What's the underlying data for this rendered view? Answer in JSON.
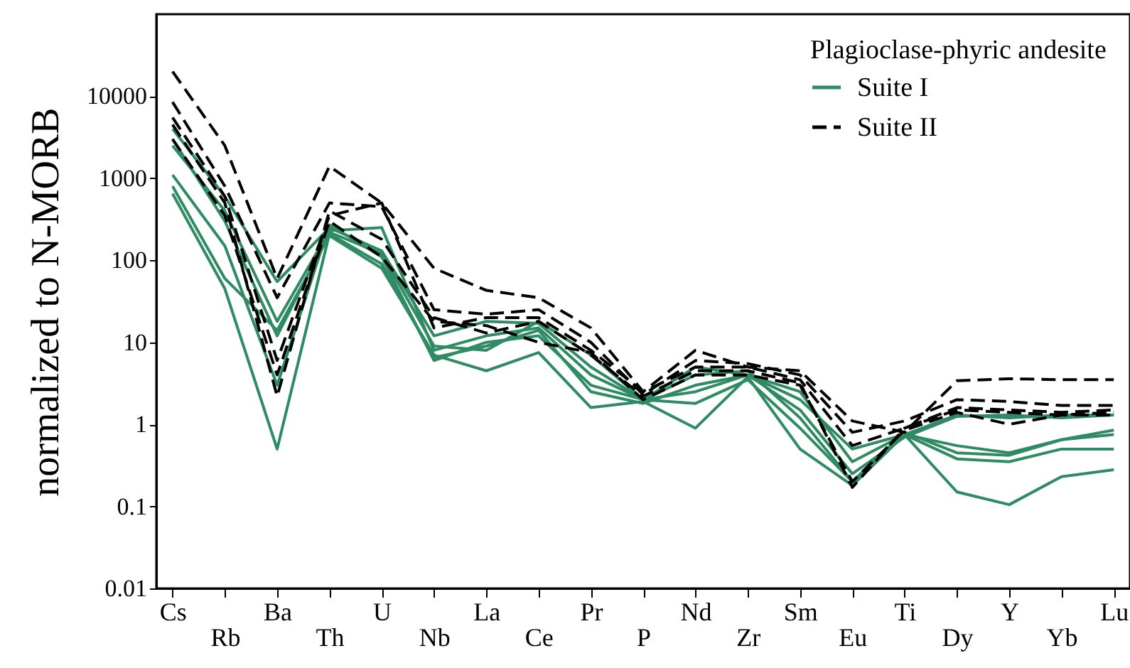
{
  "chart_data": {
    "type": "line",
    "ylabel": "normalized to N-MORB",
    "legend_title": "Plagioclase-phyric andesite",
    "legend": "top right",
    "log": true,
    "categories": [
      "Cs",
      "Rb",
      "Ba",
      "Th",
      "U",
      "Nb",
      "La",
      "Ce",
      "Pr",
      "P",
      "Nd",
      "Zr",
      "Sm",
      "Eu",
      "Ti",
      "Dy",
      "Y",
      "Yb",
      "Lu"
    ],
    "ylim": [
      0.01,
      100000
    ],
    "yticks": [
      0.01,
      0.1,
      1,
      10,
      100,
      1000,
      10000
    ],
    "grid": false,
    "marker": "none",
    "series": [
      {
        "name": "Suite I",
        "color": "#2e8b64",
        "line_style": "solid",
        "values": [
          4000,
          600,
          55,
          250,
          130,
          12,
          18,
          17,
          5,
          2,
          5,
          4,
          2,
          0.5,
          0.75,
          1.3,
          1.2,
          1.3,
          1.3
        ]
      },
      {
        "color": "#2e8b64",
        "line_style": "solid",
        "values": [
          2500,
          400,
          18,
          230,
          250,
          8,
          12,
          15,
          4,
          2,
          2.5,
          4,
          2.5,
          0.35,
          0.75,
          0.55,
          0.45,
          0.65,
          0.85
        ]
      },
      {
        "color": "#2e8b64",
        "line_style": "solid",
        "values": [
          3000,
          300,
          12,
          220,
          120,
          9,
          8,
          18,
          7,
          2,
          4,
          4.5,
          1.2,
          0.2,
          0.8,
          0.45,
          0.42,
          0.65,
          0.75
        ]
      },
      {
        "color": "#2e8b64",
        "line_style": "solid",
        "values": [
          1100,
          150,
          3,
          270,
          110,
          6,
          10,
          12,
          3,
          2,
          1.8,
          3.5,
          0.9,
          0.2,
          0.75,
          0.38,
          0.35,
          0.5,
          0.5
        ]
      },
      {
        "color": "#2e8b64",
        "line_style": "solid",
        "values": [
          800,
          60,
          14,
          200,
          80,
          7,
          4.5,
          7.5,
          1.6,
          1.9,
          0.9,
          3.8,
          0.5,
          0.18,
          0.75,
          0.15,
          0.105,
          0.23,
          0.28
        ]
      },
      {
        "color": "#2e8b64",
        "line_style": "solid",
        "values": [
          650,
          45,
          0.5,
          210,
          90,
          6.5,
          9,
          14,
          2.5,
          1.8,
          3,
          4,
          1.5,
          0.25,
          0.7,
          1.25,
          1.3,
          1.2,
          1.3
        ]
      },
      {
        "name": "Suite II",
        "color": "#000000",
        "line_style": "dashed",
        "values": [
          20000,
          2500,
          60,
          1400,
          500,
          80,
          43,
          35,
          15,
          2.5,
          8,
          5,
          4.5,
          1.1,
          0.8,
          3.4,
          3.6,
          3.5,
          3.5
        ]
      },
      {
        "color": "#000000",
        "line_style": "dashed",
        "values": [
          8500,
          800,
          35,
          500,
          450,
          25,
          22,
          25,
          10,
          2.3,
          6,
          5.5,
          4,
          0.8,
          1.1,
          2,
          1.9,
          1.7,
          1.7
        ]
      },
      {
        "color": "#000000",
        "line_style": "dashed",
        "values": [
          5500,
          600,
          6,
          350,
          500,
          15,
          20,
          20,
          8,
          2.5,
          5,
          5,
          3.5,
          0.55,
          0.9,
          1.6,
          1.5,
          1.4,
          1.5
        ]
      },
      {
        "color": "#000000",
        "line_style": "dashed",
        "values": [
          4500,
          500,
          2.2,
          400,
          180,
          20,
          13,
          18,
          7,
          2.2,
          4.5,
          4.5,
          3.2,
          0.17,
          0.9,
          1.5,
          1.4,
          1.3,
          1.4
        ]
      },
      {
        "color": "#000000",
        "line_style": "dashed",
        "values": [
          3000,
          350,
          4,
          300,
          110,
          18,
          16,
          10,
          7.5,
          2,
          4,
          4,
          3,
          0.2,
          0.85,
          1.4,
          1.0,
          1.3,
          1.3
        ]
      }
    ]
  }
}
